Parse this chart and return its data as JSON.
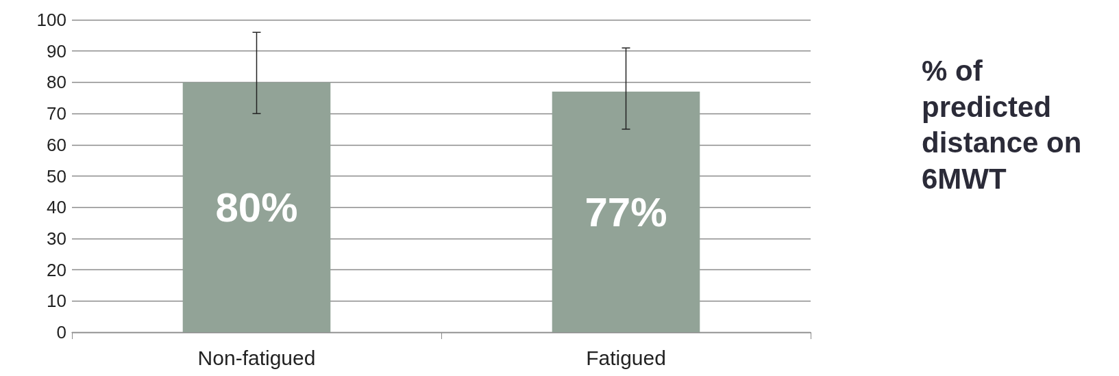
{
  "chart_data": {
    "type": "bar",
    "categories": [
      "Non-fatigued",
      "Fatigued"
    ],
    "values": [
      80,
      77
    ],
    "value_labels": [
      "80%",
      "77%"
    ],
    "errors": [
      [
        70,
        96
      ],
      [
        65,
        91
      ]
    ],
    "color": "#92a397",
    "ylim": [
      0,
      100
    ],
    "yticks": [
      0,
      10,
      20,
      30,
      40,
      50,
      60,
      70,
      80,
      90,
      100
    ],
    "grid": "y",
    "annotations": [
      "% of predicted distance on 6MWT"
    ]
  }
}
